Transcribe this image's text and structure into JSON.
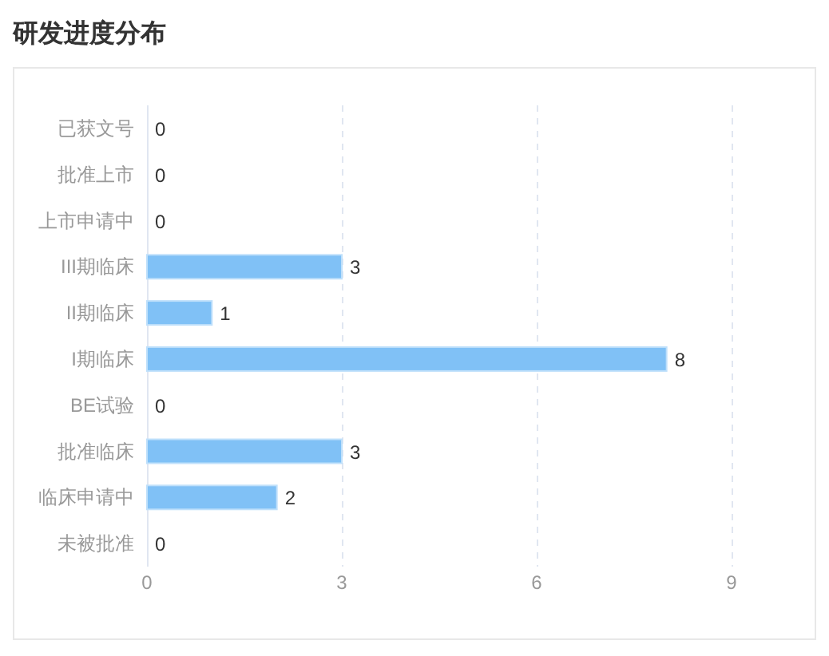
{
  "chart_data": {
    "type": "bar",
    "orientation": "horizontal",
    "title": "研发进度分布",
    "categories": [
      "已获文号",
      "批准上市",
      "上市申请中",
      "III期临床",
      "II期临床",
      "I期临床",
      "BE试验",
      "批准临床",
      "临床申请中",
      "未被批准"
    ],
    "values": [
      0,
      0,
      0,
      3,
      1,
      8,
      0,
      3,
      2,
      0
    ],
    "color": "#80c1f6",
    "xlim": [
      0,
      9
    ],
    "xticks": [
      0,
      3,
      6,
      9
    ],
    "grid": "x",
    "data_labels": true
  }
}
